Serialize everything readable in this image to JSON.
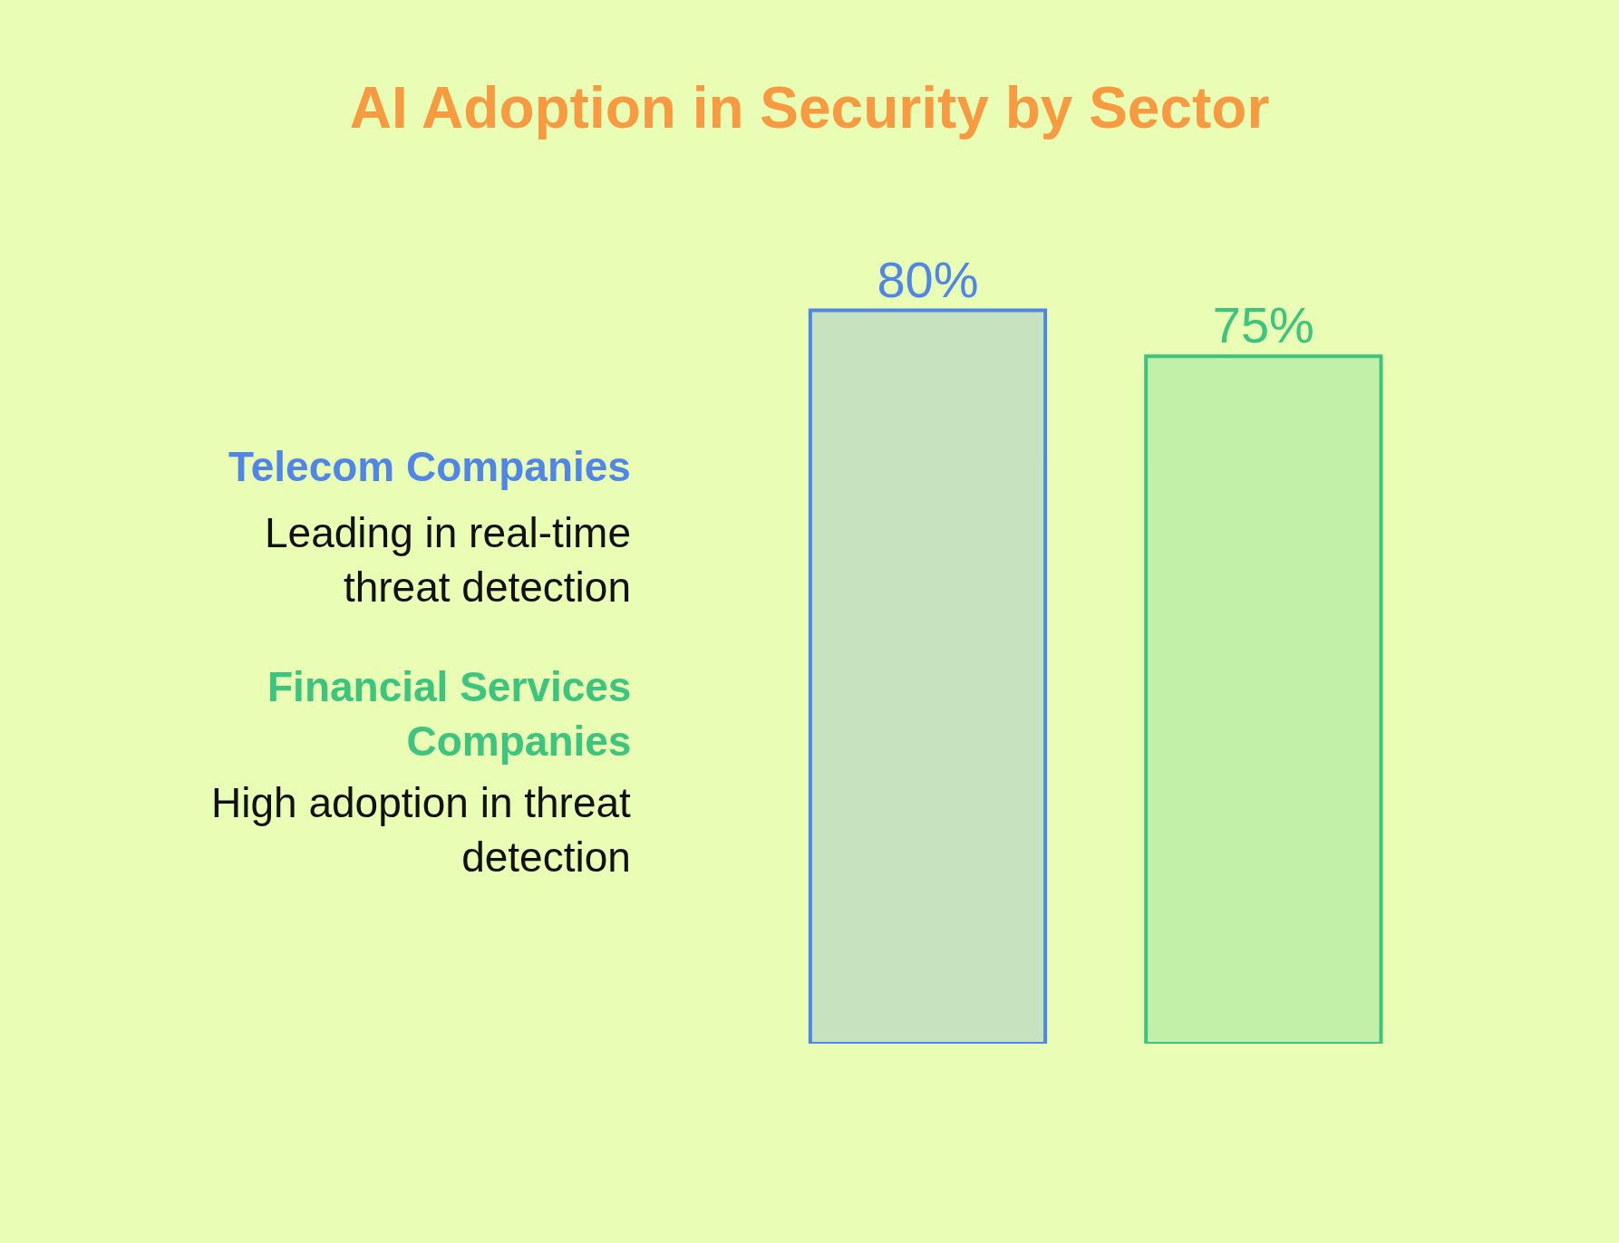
{
  "chart_data": {
    "type": "bar",
    "title": "AI Adoption in Security by Sector",
    "categories": [
      null
    ],
    "series": [
      {
        "name": "Telecom Companies",
        "color": "#4f86e8",
        "values": [
          80
        ],
        "value_labels": [
          "80%"
        ]
      },
      {
        "name": "Financial Services Companies",
        "color": "#3dc47e",
        "values": [
          75
        ],
        "value_labels": [
          "75%"
        ]
      }
    ],
    "annotations": [
      "Leading in real-time threat detection",
      "High adoption in threat detection"
    ]
  }
}
